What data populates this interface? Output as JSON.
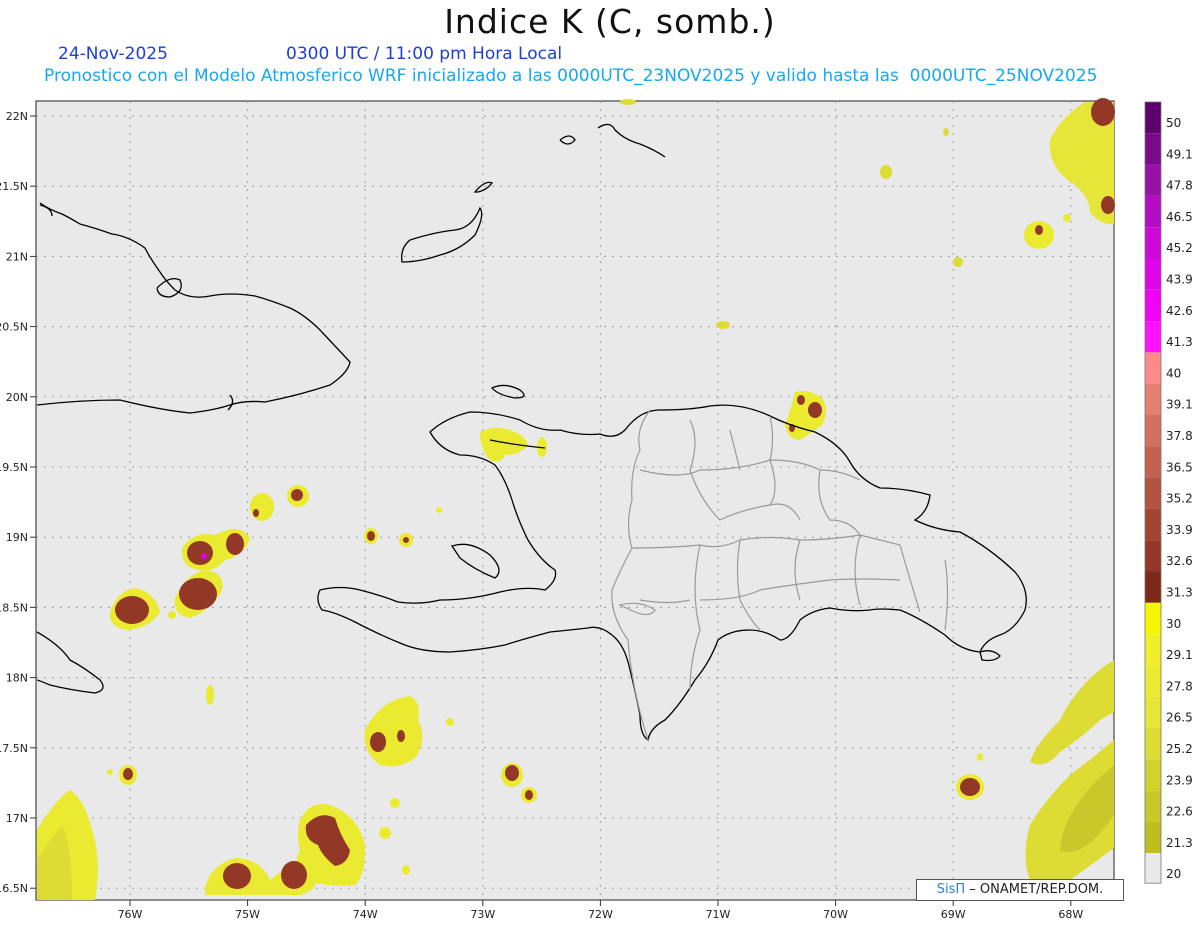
{
  "header": {
    "title": "Indice K (C, somb.)",
    "date": "24-Nov-2025",
    "time": "0300 UTC / 11:00 pm Hora Local",
    "forecast_line": "Pronostico con el Modelo Atmosferico WRF inicializado a las 0000UTC_23NOV2025 y valido hasta las  0000UTC_25NOV2025"
  },
  "map": {
    "lat_labels": [
      "22N",
      "21.5N",
      "21N",
      "20.5N",
      "20N",
      "19.5N",
      "19N",
      "18.5N",
      "18N",
      "17.5N",
      "17N",
      "16.5N"
    ],
    "lon_labels": [
      "76W",
      "75W",
      "74W",
      "73W",
      "72W",
      "71W",
      "70W",
      "69W",
      "68W"
    ],
    "background_color": "#e9e9e9"
  },
  "legend": {
    "labels": [
      "50",
      "49.1",
      "47.8",
      "46.5",
      "45.2",
      "43.9",
      "42.6",
      "41.3",
      "40",
      "39.1",
      "37.8",
      "36.5",
      "35.2",
      "33.9",
      "32.6",
      "31.3",
      "30",
      "29.1",
      "27.8",
      "26.5",
      "25.2",
      "23.9",
      "22.6",
      "21.3",
      "20"
    ],
    "colors": [
      "#5e006e",
      "#7a0a8a",
      "#9810a8",
      "#b40cc2",
      "#cc08d8",
      "#e004e8",
      "#f000f4",
      "#ff10ff",
      "#ff8a8a",
      "#e67e72",
      "#d4705f",
      "#c4614f",
      "#b45340",
      "#a44532",
      "#933826",
      "#7e2a18",
      "#f6f600",
      "#f0f02a",
      "#eaea30",
      "#e6e638",
      "#dcdc34",
      "#d2d22e",
      "#c8c82a",
      "#bebe1e",
      "#e9e9e9"
    ]
  },
  "credit": {
    "brand": "SisΠ",
    "org": " – ONAMET/REP.DOM."
  }
}
